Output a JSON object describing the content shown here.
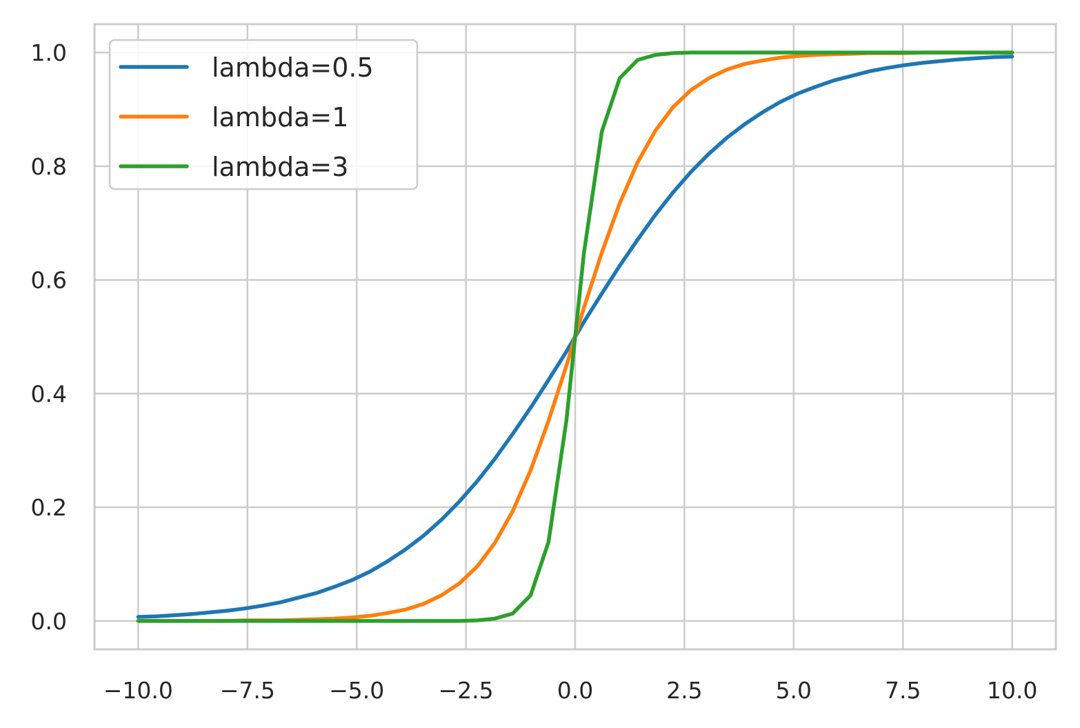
{
  "chart_data": {
    "type": "line",
    "title": "",
    "xlabel": "",
    "ylabel": "",
    "xlim": [
      -11,
      11
    ],
    "ylim": [
      -0.05,
      1.05
    ],
    "grid": true,
    "legend_position": "top-left",
    "x_ticks": [
      -10.0,
      -7.5,
      -5.0,
      -2.5,
      0.0,
      2.5,
      5.0,
      7.5,
      10.0
    ],
    "x_tick_labels": [
      "−10.0",
      "−7.5",
      "−5.0",
      "−2.5",
      "0.0",
      "2.5",
      "5.0",
      "7.5",
      "10.0"
    ],
    "y_ticks": [
      0.0,
      0.2,
      0.4,
      0.6,
      0.8,
      1.0
    ],
    "y_tick_labels": [
      "0.0",
      "0.2",
      "0.4",
      "0.6",
      "0.8",
      "1.0"
    ],
    "x": [
      -10.0,
      -9.59,
      -9.18,
      -8.78,
      -8.37,
      -7.96,
      -7.55,
      -7.14,
      -6.73,
      -6.33,
      -5.92,
      -5.51,
      -5.1,
      -4.69,
      -4.29,
      -3.88,
      -3.47,
      -3.06,
      -2.65,
      -2.24,
      -1.84,
      -1.43,
      -1.02,
      -0.61,
      -0.2,
      0.2,
      0.61,
      1.02,
      1.43,
      1.84,
      2.24,
      2.65,
      3.06,
      3.47,
      3.88,
      4.29,
      4.69,
      5.1,
      5.51,
      5.92,
      6.33,
      6.73,
      7.14,
      7.55,
      7.96,
      8.37,
      8.78,
      9.18,
      9.59,
      10.0
    ],
    "series": [
      {
        "name": "lambda=0.5",
        "color": "#1f77b4",
        "values": [
          0.007,
          0.008,
          0.01,
          0.012,
          0.015,
          0.018,
          0.022,
          0.027,
          0.033,
          0.041,
          0.049,
          0.06,
          0.072,
          0.087,
          0.105,
          0.126,
          0.15,
          0.178,
          0.21,
          0.246,
          0.285,
          0.329,
          0.375,
          0.424,
          0.474,
          0.526,
          0.576,
          0.625,
          0.671,
          0.715,
          0.754,
          0.79,
          0.822,
          0.85,
          0.874,
          0.895,
          0.913,
          0.928,
          0.94,
          0.951,
          0.959,
          0.967,
          0.973,
          0.978,
          0.982,
          0.985,
          0.988,
          0.99,
          0.992,
          0.993
        ]
      },
      {
        "name": "lambda=1",
        "color": "#ff7f0e",
        "values": [
          0.0,
          0.0,
          0.0,
          0.0,
          0.0,
          0.0,
          0.001,
          0.001,
          0.001,
          0.002,
          0.003,
          0.004,
          0.006,
          0.009,
          0.014,
          0.02,
          0.03,
          0.045,
          0.066,
          0.096,
          0.137,
          0.193,
          0.265,
          0.352,
          0.449,
          0.551,
          0.648,
          0.735,
          0.807,
          0.863,
          0.904,
          0.934,
          0.955,
          0.97,
          0.98,
          0.986,
          0.991,
          0.994,
          0.996,
          0.997,
          0.998,
          0.999,
          0.999,
          0.999,
          1.0,
          1.0,
          1.0,
          1.0,
          1.0,
          1.0
        ]
      },
      {
        "name": "lambda=3",
        "color": "#2ca02c",
        "values": [
          0.0,
          0.0,
          0.0,
          0.0,
          0.0,
          0.0,
          0.0,
          0.0,
          0.0,
          0.0,
          0.0,
          0.0,
          0.0,
          0.0,
          0.0,
          0.0,
          0.0,
          0.0,
          0.0,
          0.001,
          0.004,
          0.013,
          0.045,
          0.139,
          0.353,
          0.647,
          0.861,
          0.955,
          0.987,
          0.996,
          0.999,
          1.0,
          1.0,
          1.0,
          1.0,
          1.0,
          1.0,
          1.0,
          1.0,
          1.0,
          1.0,
          1.0,
          1.0,
          1.0,
          1.0,
          1.0,
          1.0,
          1.0,
          1.0,
          1.0
        ]
      }
    ]
  }
}
